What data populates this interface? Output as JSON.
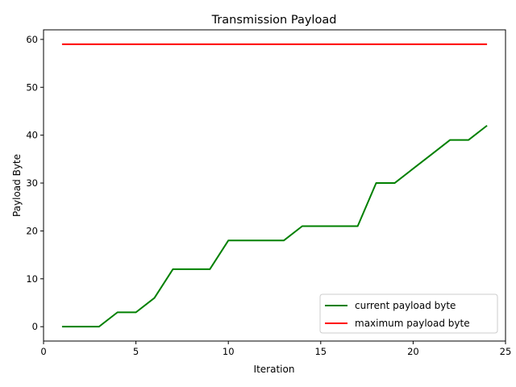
{
  "chart_data": {
    "type": "line",
    "title": "Transmission Payload",
    "xlabel": "Iteration",
    "ylabel": "Payload Byte",
    "xlim": [
      0,
      25
    ],
    "ylim": [
      -3,
      62
    ],
    "xticks": [
      0,
      5,
      10,
      15,
      20,
      25
    ],
    "yticks": [
      0,
      10,
      20,
      30,
      40,
      50,
      60
    ],
    "grid": false,
    "legend_position": "lower-right",
    "x": [
      1,
      2,
      3,
      4,
      5,
      6,
      7,
      8,
      9,
      10,
      11,
      12,
      13,
      14,
      15,
      16,
      17,
      18,
      19,
      20,
      21,
      22,
      23,
      24
    ],
    "series": [
      {
        "name": "current payload byte",
        "color": "#008000",
        "values": [
          0,
          0,
          0,
          3,
          3,
          6,
          12,
          12,
          12,
          18,
          18,
          18,
          18,
          21,
          21,
          21,
          21,
          30,
          30,
          33,
          36,
          39,
          39,
          42
        ]
      },
      {
        "name": "maximum payload byte",
        "color": "#ff0000",
        "values": [
          59,
          59,
          59,
          59,
          59,
          59,
          59,
          59,
          59,
          59,
          59,
          59,
          59,
          59,
          59,
          59,
          59,
          59,
          59,
          59,
          59,
          59,
          59,
          59
        ]
      }
    ]
  }
}
